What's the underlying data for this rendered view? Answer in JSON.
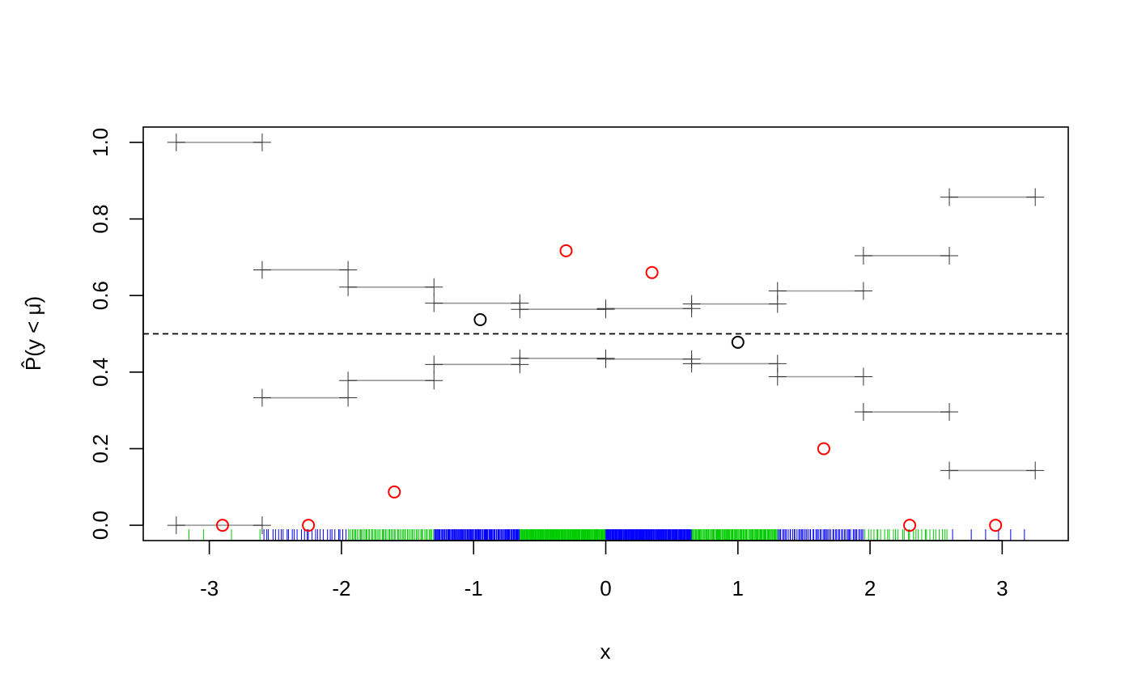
{
  "chart_data": {
    "type": "scatter",
    "title": "",
    "xlabel": "x",
    "ylabel": "P̂(y < μ̂)",
    "xlim": [
      -3.5,
      3.5
    ],
    "ylim": [
      -0.04,
      1.04
    ],
    "x_ticks": [
      -3,
      -2,
      -1,
      0,
      1,
      2,
      3
    ],
    "y_ticks": [
      0.0,
      0.2,
      0.4,
      0.6,
      0.8,
      1.0
    ],
    "y_tick_labels": [
      "0.0",
      "0.2",
      "0.4",
      "0.6",
      "0.8",
      "1.0"
    ],
    "reference_line": {
      "y": 0.5,
      "style": "dashed"
    },
    "grid": false,
    "intervals": [
      {
        "x0": -3.25,
        "x1": -2.6,
        "lower": 0.0,
        "upper": 1.0
      },
      {
        "x0": -2.6,
        "x1": -1.95,
        "lower": 0.333,
        "upper": 0.667
      },
      {
        "x0": -1.95,
        "x1": -1.3,
        "lower": 0.378,
        "upper": 0.622
      },
      {
        "x0": -1.3,
        "x1": -0.65,
        "lower": 0.42,
        "upper": 0.58
      },
      {
        "x0": -0.65,
        "x1": 0.0,
        "lower": 0.436,
        "upper": 0.564
      },
      {
        "x0": 0.0,
        "x1": 0.65,
        "lower": 0.434,
        "upper": 0.566
      },
      {
        "x0": 0.65,
        "x1": 1.3,
        "lower": 0.422,
        "upper": 0.578
      },
      {
        "x0": 1.3,
        "x1": 1.95,
        "lower": 0.388,
        "upper": 0.612
      },
      {
        "x0": 1.95,
        "x1": 2.6,
        "lower": 0.296,
        "upper": 0.704
      },
      {
        "x0": 2.6,
        "x1": 3.25,
        "lower": 0.143,
        "upper": 0.857
      }
    ],
    "points": [
      {
        "x": -2.9,
        "y": 0.0,
        "color": "#ff0000"
      },
      {
        "x": -2.25,
        "y": 0.0,
        "color": "#ff0000"
      },
      {
        "x": -1.6,
        "y": 0.087,
        "color": "#ff0000"
      },
      {
        "x": -0.95,
        "y": 0.537,
        "color": "#000000"
      },
      {
        "x": -0.3,
        "y": 0.717,
        "color": "#ff0000"
      },
      {
        "x": 0.35,
        "y": 0.66,
        "color": "#ff0000"
      },
      {
        "x": 1.0,
        "y": 0.478,
        "color": "#000000"
      },
      {
        "x": 1.65,
        "y": 0.2,
        "color": "#ff0000"
      },
      {
        "x": 2.3,
        "y": 0.0,
        "color": "#ff0000"
      },
      {
        "x": 2.95,
        "y": 0.0,
        "color": "#ff0000"
      }
    ],
    "rug": [
      {
        "x0": -3.25,
        "x1": -2.6,
        "color": "#00cc00",
        "density": 4
      },
      {
        "x0": -2.6,
        "x1": -1.95,
        "color": "#0000ff",
        "density": 30
      },
      {
        "x0": -1.95,
        "x1": -1.3,
        "color": "#00cc00",
        "density": 60
      },
      {
        "x0": -1.3,
        "x1": -0.65,
        "color": "#0000ff",
        "density": 110
      },
      {
        "x0": -0.65,
        "x1": 0.0,
        "color": "#00cc00",
        "density": 160
      },
      {
        "x0": 0.0,
        "x1": 0.65,
        "color": "#0000ff",
        "density": 160
      },
      {
        "x0": 0.65,
        "x1": 1.3,
        "color": "#00cc00",
        "density": 110
      },
      {
        "x0": 1.3,
        "x1": 1.95,
        "color": "#0000ff",
        "density": 60
      },
      {
        "x0": 1.95,
        "x1": 2.6,
        "color": "#00cc00",
        "density": 30
      },
      {
        "x0": 2.6,
        "x1": 3.25,
        "color": "#0000ff",
        "density": 6
      }
    ],
    "colors": {
      "interval": "#999999",
      "cross": "#333333",
      "reference": "#000000",
      "axis": "#000000"
    }
  }
}
